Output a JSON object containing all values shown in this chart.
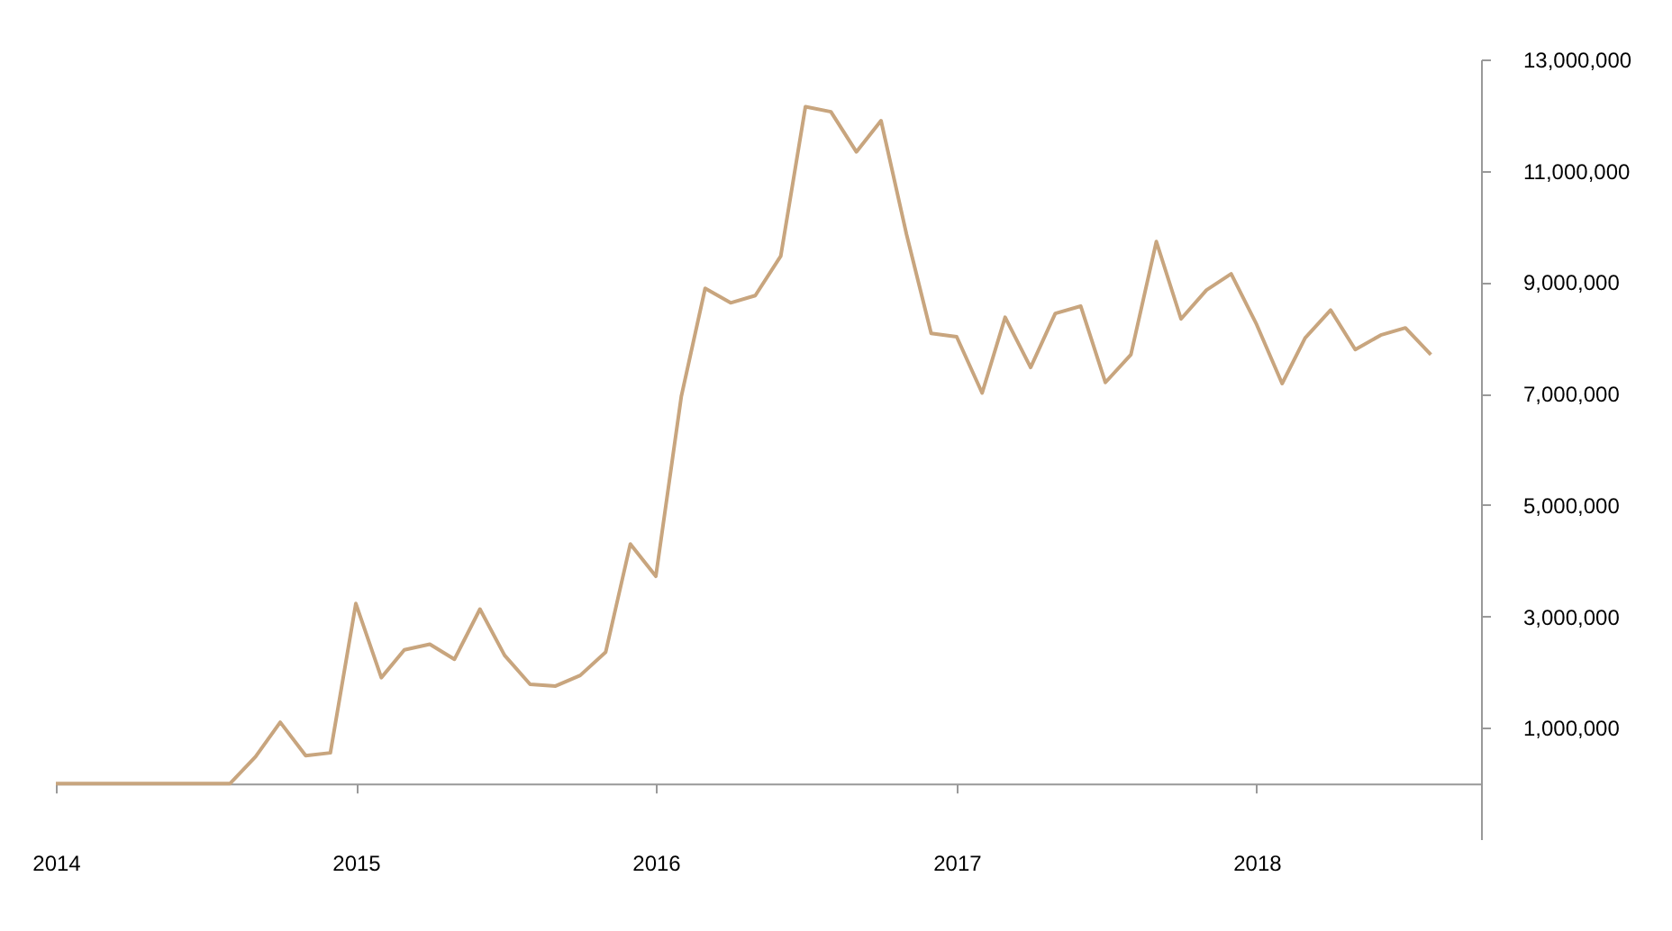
{
  "chart_data": {
    "type": "line",
    "x": [
      "2014-01",
      "2014-02",
      "2014-03",
      "2014-04",
      "2014-05",
      "2014-06",
      "2014-07",
      "2014-08",
      "2014-09",
      "2014-10",
      "2014-11",
      "2014-12",
      "2015-01",
      "2015-02",
      "2015-03",
      "2015-04",
      "2015-05",
      "2015-06",
      "2015-07",
      "2015-08",
      "2015-09",
      "2015-10",
      "2015-11",
      "2015-12",
      "2016-01",
      "2016-02",
      "2016-03",
      "2016-04",
      "2016-05",
      "2016-06",
      "2016-07",
      "2016-08",
      "2016-09",
      "2016-10",
      "2016-11",
      "2016-12",
      "2017-01",
      "2017-02",
      "2017-03",
      "2017-04",
      "2017-05",
      "2017-06",
      "2017-07",
      "2017-08",
      "2017-09",
      "2017-10",
      "2017-11",
      "2017-12",
      "2018-01",
      "2018-02",
      "2018-03",
      "2018-04",
      "2018-05",
      "2018-06",
      "2018-07",
      "2018-08"
    ],
    "series": [
      {
        "color": "#c8a57e",
        "values": [
          0,
          0,
          0,
          0,
          0,
          0,
          0,
          0,
          480000,
          1100000,
          500000,
          550000,
          3230000,
          1900000,
          2400000,
          2500000,
          2230000,
          3130000,
          2300000,
          1780000,
          1750000,
          1940000,
          2360000,
          4300000,
          3720000,
          6950000,
          8890000,
          8630000,
          8760000,
          9470000,
          12150000,
          12060000,
          11340000,
          11900000,
          9860000,
          8080000,
          8020000,
          7010000,
          8370000,
          7470000,
          8440000,
          8570000,
          7200000,
          7700000,
          9730000,
          8340000,
          8860000,
          9150000,
          8240000,
          7180000,
          8000000,
          8500000,
          7790000,
          8050000,
          8180000,
          7700000
        ]
      }
    ],
    "xlim": [
      "2014-01",
      "2018-10"
    ],
    "xticks": [
      "2014",
      "2015",
      "2016",
      "2017",
      "2018"
    ],
    "ylim": [
      -1000000,
      13000000
    ],
    "yticks": [
      {
        "value": 1000000,
        "label": "1,000,000"
      },
      {
        "value": 3000000,
        "label": "3,000,000"
      },
      {
        "value": 5000000,
        "label": "5,000,000"
      },
      {
        "value": 7000000,
        "label": "7,000,000"
      },
      {
        "value": 9000000,
        "label": "9,000,000"
      },
      {
        "value": 11000000,
        "label": "11,000,000"
      },
      {
        "value": 13000000,
        "label": "13,000,000"
      }
    ],
    "grid": false,
    "legend": false,
    "marker": "none",
    "line_style": "solid"
  }
}
